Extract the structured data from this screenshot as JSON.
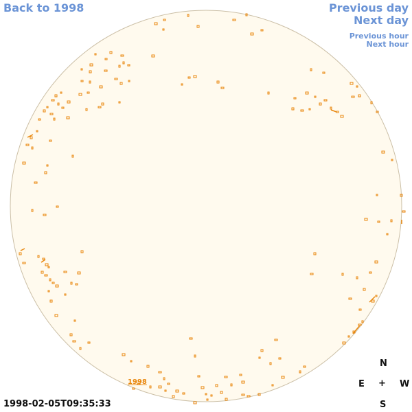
{
  "nav": {
    "back": "Back to 1998",
    "previous_day": "Previous day",
    "next_day": "Next day",
    "previous_hour": "Previous hour",
    "next_hour": "Next hour"
  },
  "timestamp": "1998-02-05T09:35:33",
  "year_link": "1998",
  "compass": {
    "north": "N",
    "east": "E",
    "center": "+",
    "west": "W",
    "south": "S"
  },
  "colors": {
    "disk_fill": "#fffaee",
    "disk_edge": "#cbbfa6",
    "feature": "#e8860c",
    "link": "#6b94d6"
  }
}
